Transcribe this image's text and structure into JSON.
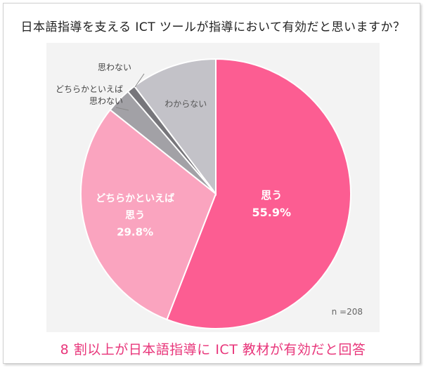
{
  "title": "日本語指導を支える ICT ツールが指導において有効だと思いますか？",
  "footer": "8 割以上が日本語指導に ICT 教材が有効だと回答",
  "footer_color": "#e8357a",
  "chart_data": {
    "type": "pie",
    "title": "日本語指導を支える ICT ツールが指導において有効だと思いますか？",
    "note": "n =208",
    "slices": [
      {
        "label": "思う",
        "value": 55.9,
        "value_label": "55.9%",
        "color": "#fc5d92",
        "label_color": "#ffffff",
        "label_weight": "bold",
        "label_inside": true
      },
      {
        "label": "どちらかといえば\n思う",
        "value": 29.8,
        "value_label": "29.8%",
        "color": "#faa4bf",
        "label_color": "#ffffff",
        "label_weight": "bold",
        "label_inside": true
      },
      {
        "label": "どちらかといえば\n思わない",
        "value": 3.0,
        "value_label": "",
        "color": "#a2a1a6",
        "label_color": "#444444",
        "label_weight": "normal",
        "label_inside": false
      },
      {
        "label": "思わない",
        "value": 1.0,
        "value_label": "",
        "color": "#77767b",
        "label_color": "#444444",
        "label_weight": "normal",
        "label_inside": false
      },
      {
        "label": "わからない",
        "value": 10.3,
        "value_label": "",
        "color": "#c3c2c8",
        "label_color": "#555555",
        "label_weight": "normal",
        "label_inside": true
      }
    ]
  }
}
